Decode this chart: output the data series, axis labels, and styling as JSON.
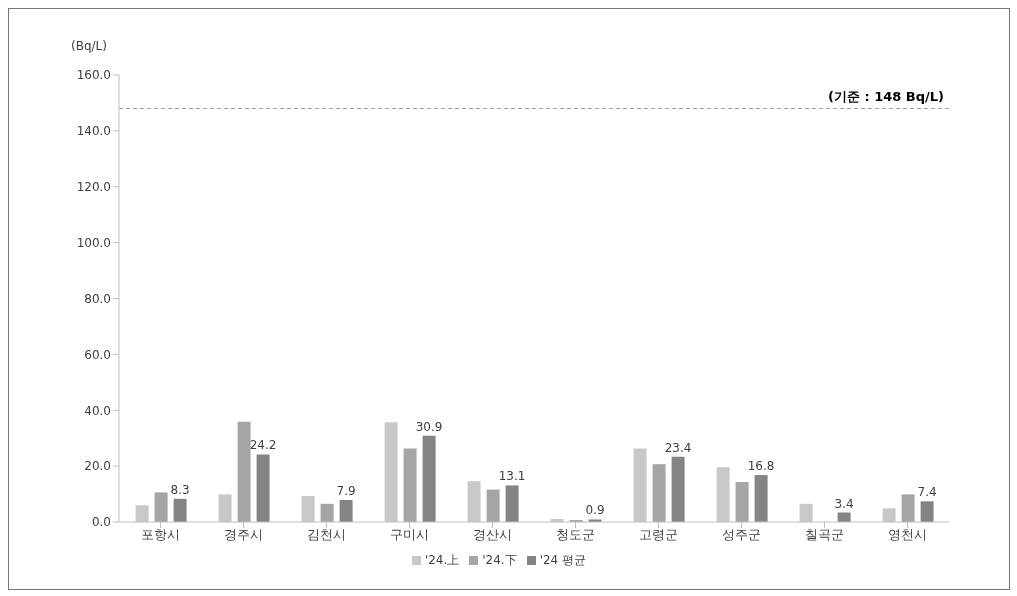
{
  "chart_data": {
    "type": "bar",
    "ylabel": "(Bq/L)",
    "categories": [
      "포항시",
      "경주시",
      "김천시",
      "구미시",
      "경산시",
      "청도군",
      "고령군",
      "성주군",
      "칠곡군",
      "영천시"
    ],
    "series": [
      {
        "name": "'24.上",
        "color": "#c8c8c8",
        "values": [
          6.0,
          9.9,
          9.3,
          35.7,
          14.6,
          1.1,
          26.3,
          19.6,
          6.5,
          4.9
        ]
      },
      {
        "name": "'24.下",
        "color": "#a5a5a5",
        "values": [
          10.6,
          35.9,
          6.5,
          26.3,
          11.6,
          0.7,
          20.7,
          14.3,
          null,
          9.9
        ]
      },
      {
        "name": "'24 평균",
        "color": "#848484",
        "values": [
          8.3,
          24.2,
          7.9,
          30.9,
          13.1,
          0.9,
          23.4,
          16.8,
          3.4,
          7.4
        ],
        "value_labels": [
          "8.3",
          "24.2",
          "7.9",
          "30.9",
          "13.1",
          "0.9",
          "23.4",
          "16.8",
          "3.4",
          "7.4"
        ]
      }
    ],
    "ylim": [
      0,
      160
    ],
    "yticks": [
      {
        "value": 0,
        "label": "0.0"
      },
      {
        "value": 20,
        "label": "20.0"
      },
      {
        "value": 40,
        "label": "40.0"
      },
      {
        "value": 60,
        "label": "60.0"
      },
      {
        "value": 80,
        "label": "80.0"
      },
      {
        "value": 100,
        "label": "100.0"
      },
      {
        "value": 120,
        "label": "120.0"
      },
      {
        "value": 140,
        "label": "140.0"
      },
      {
        "value": 160,
        "label": "160.0"
      }
    ],
    "ref_lines": [
      {
        "axis": "y",
        "value": 148,
        "label": "(기준 : 148 Bq/L)",
        "color": "#a0a0a0",
        "line_style": "dashed"
      }
    ],
    "grid": false,
    "legend": "bottom"
  }
}
